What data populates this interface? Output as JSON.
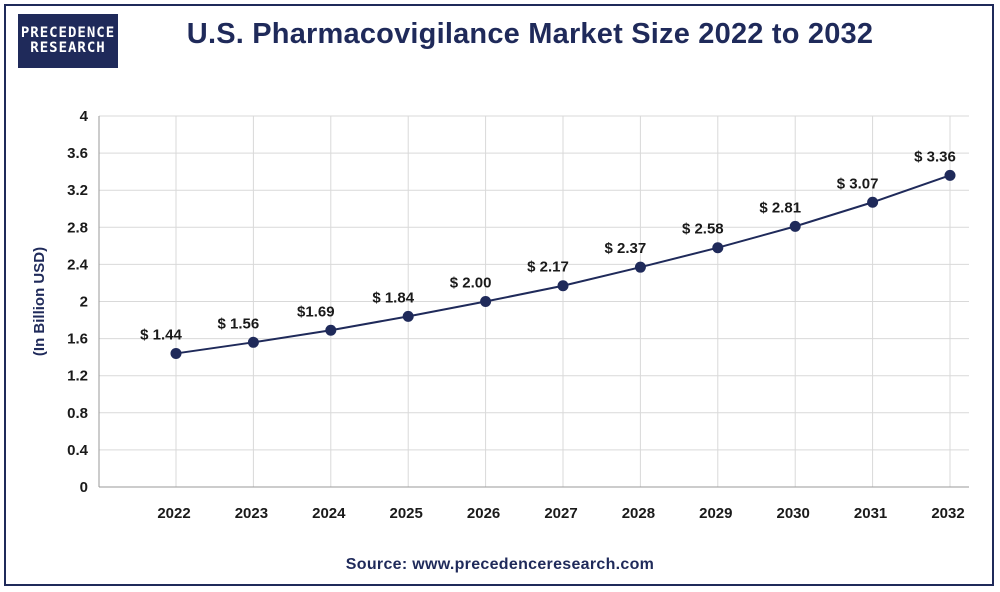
{
  "brand": {
    "line1": "PRECEDENCE",
    "line2": "RESEARCH"
  },
  "source_text": "Source: www.precedenceresearch.com",
  "colors": {
    "brand": "#1f2a5a",
    "line": "#1f2a5a",
    "grid": "#d9d9d9"
  },
  "chart_data": {
    "type": "line",
    "title": "U.S. Pharmacovigilance Market Size 2022 to 2032",
    "xlabel": "",
    "ylabel": "(In Billion USD)",
    "ylim": [
      0,
      4
    ],
    "yticks": [
      "0",
      "0.4",
      "0.8",
      "1.2",
      "1.6",
      "2",
      "2.4",
      "2.8",
      "3.2",
      "3.6",
      "4"
    ],
    "categories": [
      "2022",
      "2023",
      "2024",
      "2025",
      "2026",
      "2027",
      "2028",
      "2029",
      "2030",
      "2031",
      "2032"
    ],
    "values": [
      1.44,
      1.56,
      1.69,
      1.84,
      2.0,
      2.17,
      2.37,
      2.58,
      2.81,
      3.07,
      3.36
    ],
    "data_labels": [
      "$ 1.44",
      "$ 1.56",
      "$1.69",
      "$ 1.84",
      "$ 2.00",
      "$ 2.17",
      "$ 2.37",
      "$ 2.58",
      "$ 2.81",
      "$ 3.07",
      "$ 3.36"
    ],
    "grid": true,
    "legend": "none"
  }
}
